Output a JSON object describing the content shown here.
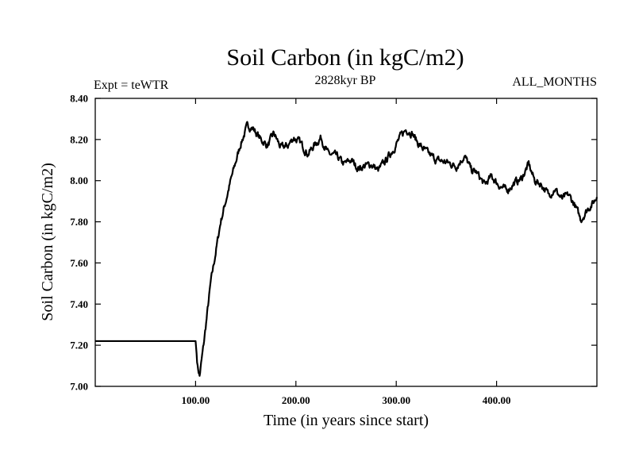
{
  "chart_data": {
    "type": "line",
    "title": "Soil Carbon (in kgC/m2)",
    "subtitle": "2828kyr BP",
    "left_label": "Expt = teWTR",
    "right_label": "ALL_MONTHS",
    "xlabel": "Time (in years since start)",
    "ylabel": "Soil Carbon (in kgC/m2)",
    "xlim": [
      0,
      500
    ],
    "ylim": [
      7.0,
      8.4
    ],
    "x_ticks": [
      100,
      200,
      300,
      400
    ],
    "x_tick_labels": [
      "100.00",
      "200.00",
      "300.00",
      "400.00"
    ],
    "y_ticks": [
      7.0,
      7.2,
      7.4,
      7.6,
      7.8,
      8.0,
      8.2,
      8.4
    ],
    "y_tick_labels": [
      "7.00",
      "7.20",
      "7.40",
      "7.60",
      "7.80",
      "8.00",
      "8.20",
      "8.40"
    ],
    "line_color": "#000000",
    "series": [
      {
        "name": "Soil Carbon",
        "x": [
          0,
          100,
          102,
          104,
          108,
          115,
          125,
          135,
          145,
          152,
          158,
          165,
          172,
          178,
          185,
          192,
          198,
          205,
          212,
          218,
          225,
          232,
          240,
          248,
          255,
          262,
          268,
          275,
          282,
          290,
          298,
          305,
          310,
          316,
          322,
          330,
          340,
          350,
          360,
          368,
          375,
          380,
          388,
          395,
          402,
          410,
          418,
          425,
          432,
          438,
          445,
          452,
          458,
          465,
          472,
          478,
          484,
          488,
          492,
          496,
          500
        ],
        "values": [
          7.22,
          7.22,
          7.1,
          7.05,
          7.2,
          7.5,
          7.8,
          8.0,
          8.18,
          8.27,
          8.25,
          8.2,
          8.17,
          8.23,
          8.16,
          8.17,
          8.21,
          8.18,
          8.13,
          8.17,
          8.21,
          8.13,
          8.12,
          8.08,
          8.1,
          8.06,
          8.07,
          8.08,
          8.05,
          8.1,
          8.16,
          8.22,
          8.25,
          8.23,
          8.18,
          8.14,
          8.1,
          8.09,
          8.07,
          8.12,
          8.05,
          8.04,
          7.98,
          8.02,
          7.98,
          7.95,
          7.99,
          8.01,
          8.08,
          8.0,
          7.98,
          7.93,
          7.96,
          7.91,
          7.93,
          7.88,
          7.81,
          7.84,
          7.87,
          7.89,
          7.92
        ]
      }
    ]
  }
}
